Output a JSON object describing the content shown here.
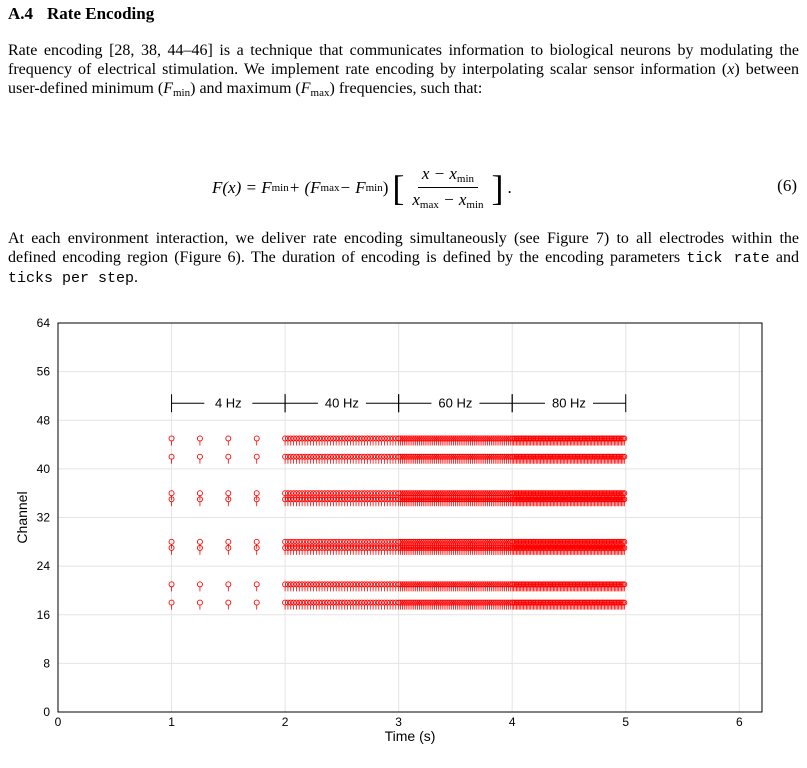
{
  "section": {
    "number": "A.4",
    "title": "Rate Encoding"
  },
  "paragraph1": {
    "part1": "Rate encoding [28, 38, 44–46] is a technique that communicates information to biological neurons by modulating the frequency of electrical stimulation. We implement rate encoding by interpolating scalar sensor information (",
    "var_x": "x",
    "part2": ") between user-defined minimum (",
    "fmin_F": "F",
    "fmin_sub": "min",
    "part3": ") and maximum (",
    "fmax_F": "F",
    "fmax_sub": "max",
    "part4": ") frequencies, such that:"
  },
  "equation": {
    "lhs": "F(x) = F",
    "lhs_sub": "min",
    "plus": " + (F",
    "max_sub": "max",
    "minus": " − F",
    "min_sub2": "min",
    "close": ")",
    "num_x": "x − x",
    "num_sub": "min",
    "den_x": "x",
    "den_sub1": "max",
    "den_minus": " − x",
    "den_sub2": "min",
    "bracket_open": "[",
    "bracket_close": "]",
    "period": ".",
    "number": "(6)"
  },
  "paragraph2": {
    "part1": "At each environment interaction, we deliver rate encoding simultaneously (see Figure 7) to all electrodes within the defined encoding region (Figure 6). The duration of encoding is defined by the encoding parameters ",
    "code1": "tick rate",
    "part2": " and ",
    "code2": "ticks per step",
    "part3": "."
  },
  "chart_data": {
    "type": "scatter",
    "xlabel": "Time (s)",
    "ylabel": "Channel",
    "xlim": [
      0,
      6.2
    ],
    "ylim": [
      0,
      64
    ],
    "xticks": [
      "0",
      "1",
      "2",
      "3",
      "4",
      "5",
      "6"
    ],
    "yticks": [
      "0",
      "8",
      "16",
      "24",
      "32",
      "40",
      "48",
      "56",
      "64"
    ],
    "grid": true,
    "channels": [
      18,
      21,
      27,
      28,
      35,
      36,
      42,
      45
    ],
    "segments": [
      {
        "label": "4 Hz",
        "start": 1,
        "end": 2,
        "frequency": 4
      },
      {
        "label": "40 Hz",
        "start": 2,
        "end": 3,
        "frequency": 40
      },
      {
        "label": "60 Hz",
        "start": 3,
        "end": 4,
        "frequency": 60
      },
      {
        "label": "80 Hz",
        "start": 4,
        "end": 5,
        "frequency": 80
      }
    ],
    "marker_color": "#ff0000"
  }
}
